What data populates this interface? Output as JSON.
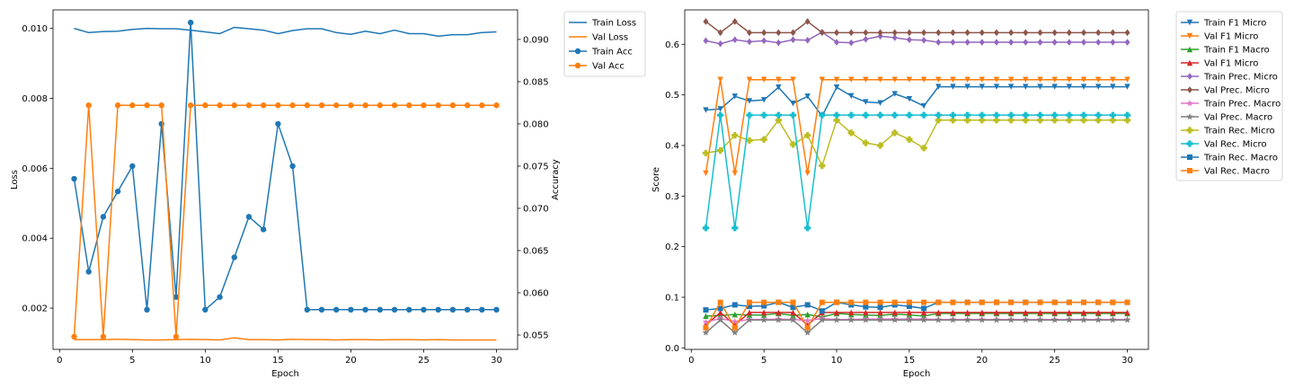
{
  "chart_data": [
    {
      "type": "line",
      "xlabel": "Epoch",
      "ylabel": "Loss",
      "y2label": "Accuracy",
      "xlim": [
        -0.45,
        31.45
      ],
      "ylim": [
        0.00082,
        0.01053
      ],
      "y2lim": [
        0.0533,
        0.0935
      ],
      "xticks": [
        "0",
        "5",
        "10",
        "15",
        "20",
        "25",
        "30"
      ],
      "yticks": [
        "0.002",
        "0.004",
        "0.006",
        "0.008",
        "0.010"
      ],
      "y2ticks": [
        "0.055",
        "0.060",
        "0.065",
        "0.070",
        "0.075",
        "0.080",
        "0.085",
        "0.090"
      ],
      "legend_position": "outside upper right",
      "x": [
        1,
        2,
        3,
        4,
        5,
        6,
        7,
        8,
        9,
        10,
        11,
        12,
        13,
        14,
        15,
        16,
        17,
        18,
        19,
        20,
        21,
        22,
        23,
        24,
        25,
        26,
        27,
        28,
        29,
        30
      ],
      "series": [
        {
          "name": "Train Loss",
          "axis": "left",
          "color": "#1f77b4",
          "marker": "none",
          "values": [
            0.01,
            0.00988,
            0.00991,
            0.00992,
            0.00997,
            0.01,
            0.00999,
            0.00999,
            0.00995,
            0.0099,
            0.00985,
            0.01003,
            0.00999,
            0.00995,
            0.00985,
            0.00994,
            0.00999,
            0.00999,
            0.00988,
            0.00983,
            0.00992,
            0.00985,
            0.00995,
            0.00985,
            0.00985,
            0.00978,
            0.00982,
            0.00982,
            0.00988,
            0.0099
          ]
        },
        {
          "name": "Val Loss",
          "axis": "left",
          "color": "#ff7f0e",
          "marker": "none",
          "values": [
            0.0011,
            0.0011,
            0.0011,
            0.00111,
            0.0011,
            0.00109,
            0.00109,
            0.0011,
            0.00111,
            0.0011,
            0.00109,
            0.00115,
            0.0011,
            0.0011,
            0.00109,
            0.00111,
            0.0011,
            0.0011,
            0.00109,
            0.0011,
            0.0011,
            0.00109,
            0.0011,
            0.0011,
            0.00109,
            0.0011,
            0.00109,
            0.00109,
            0.00109,
            0.00109
          ]
        },
        {
          "name": "Train Acc",
          "axis": "right",
          "color": "#1f77b4",
          "marker": "circle",
          "values": [
            0.0735,
            0.0625,
            0.069,
            0.072,
            0.075,
            0.058,
            0.08,
            0.0595,
            0.092,
            0.058,
            0.0595,
            0.0642,
            0.069,
            0.0675,
            0.08,
            0.075,
            0.058,
            0.058,
            0.058,
            0.058,
            0.058,
            0.058,
            0.058,
            0.058,
            0.058,
            0.058,
            0.058,
            0.058,
            0.058,
            0.058
          ]
        },
        {
          "name": "Val Acc",
          "axis": "right",
          "color": "#ff7f0e",
          "marker": "circle",
          "values": [
            0.0548,
            0.0822,
            0.0548,
            0.0822,
            0.0822,
            0.0822,
            0.0822,
            0.0548,
            0.0822,
            0.0822,
            0.0822,
            0.0822,
            0.0822,
            0.0822,
            0.0822,
            0.0822,
            0.0822,
            0.0822,
            0.0822,
            0.0822,
            0.0822,
            0.0822,
            0.0822,
            0.0822,
            0.0822,
            0.0822,
            0.0822,
            0.0822,
            0.0822,
            0.0822
          ]
        }
      ]
    },
    {
      "type": "line",
      "xlabel": "Epoch",
      "ylabel": "Score",
      "xlim": [
        -0.45,
        31.45
      ],
      "ylim": [
        -0.003,
        0.668
      ],
      "xticks": [
        "0",
        "5",
        "10",
        "15",
        "20",
        "25",
        "30"
      ],
      "yticks": [
        "0.0",
        "0.1",
        "0.2",
        "0.3",
        "0.4",
        "0.5",
        "0.6"
      ],
      "legend_position": "outside upper right",
      "x": [
        1,
        2,
        3,
        4,
        5,
        6,
        7,
        8,
        9,
        10,
        11,
        12,
        13,
        14,
        15,
        16,
        17,
        18,
        19,
        20,
        21,
        22,
        23,
        24,
        25,
        26,
        27,
        28,
        29,
        30
      ],
      "series": [
        {
          "name": "Train F1 Micro",
          "color": "#1f77b4",
          "marker": "triangle-down",
          "values": [
            0.47,
            0.472,
            0.497,
            0.488,
            0.49,
            0.515,
            0.483,
            0.497,
            0.458,
            0.515,
            0.498,
            0.486,
            0.484,
            0.502,
            0.492,
            0.478,
            0.516,
            0.516,
            0.516,
            0.516,
            0.516,
            0.516,
            0.516,
            0.516,
            0.516,
            0.516,
            0.516,
            0.516,
            0.516,
            0.516
          ]
        },
        {
          "name": "Val F1 Micro",
          "color": "#ff7f0e",
          "marker": "triangle-down",
          "values": [
            0.345,
            0.53,
            0.345,
            0.53,
            0.53,
            0.53,
            0.53,
            0.345,
            0.53,
            0.53,
            0.53,
            0.53,
            0.53,
            0.53,
            0.53,
            0.53,
            0.53,
            0.53,
            0.53,
            0.53,
            0.53,
            0.53,
            0.53,
            0.53,
            0.53,
            0.53,
            0.53,
            0.53,
            0.53,
            0.53
          ]
        },
        {
          "name": "Train F1 Macro",
          "color": "#2ca02c",
          "marker": "triangle-up",
          "values": [
            0.063,
            0.064,
            0.066,
            0.065,
            0.065,
            0.068,
            0.064,
            0.066,
            0.061,
            0.068,
            0.066,
            0.065,
            0.064,
            0.067,
            0.065,
            0.063,
            0.068,
            0.068,
            0.068,
            0.068,
            0.068,
            0.068,
            0.068,
            0.068,
            0.068,
            0.068,
            0.068,
            0.068,
            0.068,
            0.068
          ]
        },
        {
          "name": "Val F1 Micro",
          "color": "#d62728",
          "marker": "triangle-up",
          "values": [
            0.045,
            0.07,
            0.045,
            0.07,
            0.07,
            0.07,
            0.07,
            0.045,
            0.07,
            0.07,
            0.07,
            0.07,
            0.07,
            0.07,
            0.07,
            0.07,
            0.07,
            0.07,
            0.07,
            0.07,
            0.07,
            0.07,
            0.07,
            0.07,
            0.07,
            0.07,
            0.07,
            0.07,
            0.07,
            0.07
          ]
        },
        {
          "name": "Train Prec. Micro",
          "color": "#9467bd",
          "marker": "diamond",
          "values": [
            0.607,
            0.601,
            0.609,
            0.605,
            0.607,
            0.603,
            0.609,
            0.608,
            0.624,
            0.604,
            0.603,
            0.61,
            0.616,
            0.613,
            0.609,
            0.608,
            0.604,
            0.604,
            0.604,
            0.604,
            0.604,
            0.604,
            0.604,
            0.604,
            0.604,
            0.604,
            0.604,
            0.604,
            0.604,
            0.604
          ]
        },
        {
          "name": "Val Prec. Micro",
          "color": "#8c564b",
          "marker": "diamond",
          "values": [
            0.645,
            0.623,
            0.645,
            0.623,
            0.623,
            0.623,
            0.623,
            0.645,
            0.623,
            0.623,
            0.623,
            0.623,
            0.623,
            0.623,
            0.623,
            0.623,
            0.623,
            0.623,
            0.623,
            0.623,
            0.623,
            0.623,
            0.623,
            0.623,
            0.623,
            0.623,
            0.623,
            0.623,
            0.623,
            0.623
          ]
        },
        {
          "name": "Train Prec. Macro",
          "color": "#e377c2",
          "marker": "star",
          "values": [
            0.051,
            0.058,
            0.052,
            0.056,
            0.056,
            0.057,
            0.056,
            0.054,
            0.058,
            0.056,
            0.056,
            0.057,
            0.057,
            0.057,
            0.057,
            0.057,
            0.056,
            0.056,
            0.056,
            0.056,
            0.056,
            0.056,
            0.056,
            0.056,
            0.056,
            0.056,
            0.056,
            0.056,
            0.056,
            0.056
          ]
        },
        {
          "name": "Val Prec. Macro",
          "color": "#7f7f7f",
          "marker": "star",
          "values": [
            0.03,
            0.055,
            0.03,
            0.055,
            0.055,
            0.055,
            0.055,
            0.03,
            0.055,
            0.055,
            0.055,
            0.055,
            0.055,
            0.055,
            0.055,
            0.055,
            0.055,
            0.055,
            0.055,
            0.055,
            0.055,
            0.055,
            0.055,
            0.055,
            0.055,
            0.055,
            0.055,
            0.055,
            0.055,
            0.055
          ]
        },
        {
          "name": "Train Rec. Micro",
          "color": "#bcbd22",
          "marker": "plus",
          "values": [
            0.385,
            0.39,
            0.42,
            0.41,
            0.412,
            0.45,
            0.402,
            0.42,
            0.36,
            0.45,
            0.425,
            0.405,
            0.4,
            0.425,
            0.412,
            0.395,
            0.45,
            0.45,
            0.45,
            0.45,
            0.45,
            0.45,
            0.45,
            0.45,
            0.45,
            0.45,
            0.45,
            0.45,
            0.45,
            0.45
          ]
        },
        {
          "name": "Val Rec. Micro",
          "color": "#17becf",
          "marker": "plus",
          "values": [
            0.237,
            0.46,
            0.237,
            0.46,
            0.46,
            0.46,
            0.46,
            0.237,
            0.46,
            0.46,
            0.46,
            0.46,
            0.46,
            0.46,
            0.46,
            0.46,
            0.46,
            0.46,
            0.46,
            0.46,
            0.46,
            0.46,
            0.46,
            0.46,
            0.46,
            0.46,
            0.46,
            0.46,
            0.46,
            0.46
          ]
        },
        {
          "name": "Train Rec. Macro",
          "color": "#1f77b4",
          "marker": "square",
          "values": [
            0.075,
            0.078,
            0.085,
            0.082,
            0.083,
            0.09,
            0.08,
            0.085,
            0.073,
            0.09,
            0.085,
            0.081,
            0.08,
            0.085,
            0.082,
            0.078,
            0.09,
            0.09,
            0.09,
            0.09,
            0.09,
            0.09,
            0.09,
            0.09,
            0.09,
            0.09,
            0.09,
            0.09,
            0.09,
            0.09
          ]
        },
        {
          "name": "Val Rec. Macro",
          "color": "#ff7f0e",
          "marker": "square",
          "values": [
            0.04,
            0.09,
            0.04,
            0.09,
            0.09,
            0.09,
            0.09,
            0.04,
            0.09,
            0.09,
            0.09,
            0.09,
            0.09,
            0.09,
            0.09,
            0.09,
            0.09,
            0.09,
            0.09,
            0.09,
            0.09,
            0.09,
            0.09,
            0.09,
            0.09,
            0.09,
            0.09,
            0.09,
            0.09,
            0.09
          ]
        }
      ]
    }
  ]
}
